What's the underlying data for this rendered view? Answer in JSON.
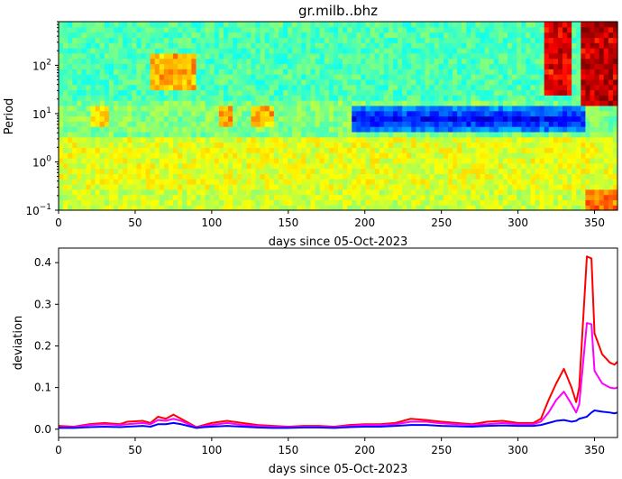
{
  "chart_data": [
    {
      "type": "heatmap",
      "title": "gr.milb..bhz",
      "xlabel": "days since 05-Oct-2023",
      "ylabel": "Period",
      "xlim": [
        0,
        365
      ],
      "ylim": [
        0.1,
        800
      ],
      "y_scale": "log",
      "x_ticks": [
        0,
        50,
        100,
        150,
        200,
        250,
        300,
        350
      ],
      "x_tick_labels": [
        "0",
        "50",
        "100",
        "150",
        "200",
        "250",
        "300",
        "350"
      ],
      "y_ticks": [
        0.1,
        1,
        10,
        100
      ],
      "y_tick_labels": [
        "10",
        "10",
        "10",
        "10"
      ],
      "y_tick_exponents": [
        "−1",
        "0",
        "1",
        "2"
      ],
      "colormap": "jet",
      "color_range": [
        -1,
        1
      ],
      "bands": [
        {
          "period_min": 0.1,
          "period_max": 0.3,
          "level": 0.15
        },
        {
          "period_min": 0.3,
          "period_max": 3,
          "level": 0.2
        },
        {
          "period_min": 3,
          "period_max": 18,
          "level": 0.0
        },
        {
          "period_min": 18,
          "period_max": 800,
          "level": -0.1
        }
      ],
      "features": [
        {
          "kind": "hotspot",
          "day_start": 20,
          "day_end": 32,
          "period_min": 6,
          "period_max": 14,
          "level": 0.35
        },
        {
          "kind": "hotspot",
          "day_start": 60,
          "day_end": 90,
          "period_min": 30,
          "period_max": 200,
          "level": 0.45
        },
        {
          "kind": "hotspot",
          "day_start": 105,
          "day_end": 113,
          "period_min": 6,
          "period_max": 14,
          "level": 0.5
        },
        {
          "kind": "hotspot",
          "day_start": 125,
          "day_end": 140,
          "period_min": 6,
          "period_max": 14,
          "level": 0.45
        },
        {
          "kind": "blue_band",
          "day_start": 190,
          "day_end": 345,
          "period_min": 4,
          "period_max": 15,
          "level": -0.75
        },
        {
          "kind": "hot_block",
          "day_start": 316,
          "day_end": 336,
          "period_min": 25,
          "period_max": 800,
          "level": 0.9
        },
        {
          "kind": "hot_block",
          "day_start": 340,
          "day_end": 365,
          "period_min": 15,
          "period_max": 800,
          "level": 1.0
        },
        {
          "kind": "hotspot",
          "day_start": 345,
          "day_end": 365,
          "period_min": 0.1,
          "period_max": 0.3,
          "level": 0.6
        }
      ]
    },
    {
      "type": "line",
      "xlabel": "days since 05-Oct-2023",
      "ylabel": "deviation",
      "xlim": [
        0,
        365
      ],
      "ylim": [
        -0.02,
        0.435
      ],
      "x_ticks": [
        0,
        50,
        100,
        150,
        200,
        250,
        300,
        350
      ],
      "x_tick_labels": [
        "0",
        "50",
        "100",
        "150",
        "200",
        "250",
        "300",
        "350"
      ],
      "y_ticks": [
        0.0,
        0.1,
        0.2,
        0.3,
        0.4
      ],
      "y_tick_labels": [
        "0.0",
        "0.1",
        "0.2",
        "0.3",
        "0.4"
      ],
      "x": [
        0,
        10,
        20,
        30,
        40,
        45,
        55,
        60,
        65,
        70,
        75,
        80,
        90,
        95,
        100,
        110,
        120,
        130,
        140,
        150,
        160,
        170,
        180,
        190,
        200,
        210,
        220,
        230,
        240,
        250,
        260,
        270,
        280,
        290,
        300,
        310,
        315,
        320,
        325,
        330,
        335,
        338,
        340,
        345,
        348,
        350,
        355,
        360,
        363,
        365
      ],
      "series": [
        {
          "color": "#ff0000",
          "values": [
            0.008,
            0.006,
            0.012,
            0.015,
            0.012,
            0.018,
            0.02,
            0.015,
            0.03,
            0.025,
            0.035,
            0.025,
            0.005,
            0.01,
            0.015,
            0.02,
            0.015,
            0.01,
            0.008,
            0.006,
            0.008,
            0.008,
            0.006,
            0.01,
            0.012,
            0.012,
            0.015,
            0.025,
            0.022,
            0.018,
            0.015,
            0.012,
            0.018,
            0.02,
            0.015,
            0.015,
            0.025,
            0.07,
            0.11,
            0.145,
            0.1,
            0.065,
            0.1,
            0.415,
            0.41,
            0.23,
            0.18,
            0.16,
            0.155,
            0.162
          ]
        },
        {
          "color": "#ff00ff",
          "values": [
            0.005,
            0.005,
            0.01,
            0.012,
            0.01,
            0.012,
            0.015,
            0.012,
            0.022,
            0.02,
            0.025,
            0.02,
            0.004,
            0.008,
            0.01,
            0.015,
            0.01,
            0.008,
            0.006,
            0.005,
            0.006,
            0.006,
            0.005,
            0.008,
            0.01,
            0.01,
            0.012,
            0.018,
            0.018,
            0.014,
            0.012,
            0.01,
            0.012,
            0.015,
            0.012,
            0.012,
            0.018,
            0.04,
            0.07,
            0.09,
            0.06,
            0.04,
            0.06,
            0.255,
            0.252,
            0.14,
            0.11,
            0.1,
            0.098,
            0.1
          ]
        },
        {
          "color": "#0000ff",
          "values": [
            0.003,
            0.003,
            0.005,
            0.006,
            0.005,
            0.006,
            0.008,
            0.006,
            0.012,
            0.012,
            0.015,
            0.012,
            0.003,
            0.005,
            0.006,
            0.008,
            0.006,
            0.004,
            0.003,
            0.003,
            0.004,
            0.004,
            0.003,
            0.005,
            0.006,
            0.006,
            0.008,
            0.01,
            0.01,
            0.008,
            0.007,
            0.006,
            0.008,
            0.009,
            0.008,
            0.008,
            0.01,
            0.015,
            0.02,
            0.022,
            0.018,
            0.02,
            0.025,
            0.03,
            0.04,
            0.045,
            0.042,
            0.04,
            0.038,
            0.04
          ]
        }
      ]
    }
  ]
}
